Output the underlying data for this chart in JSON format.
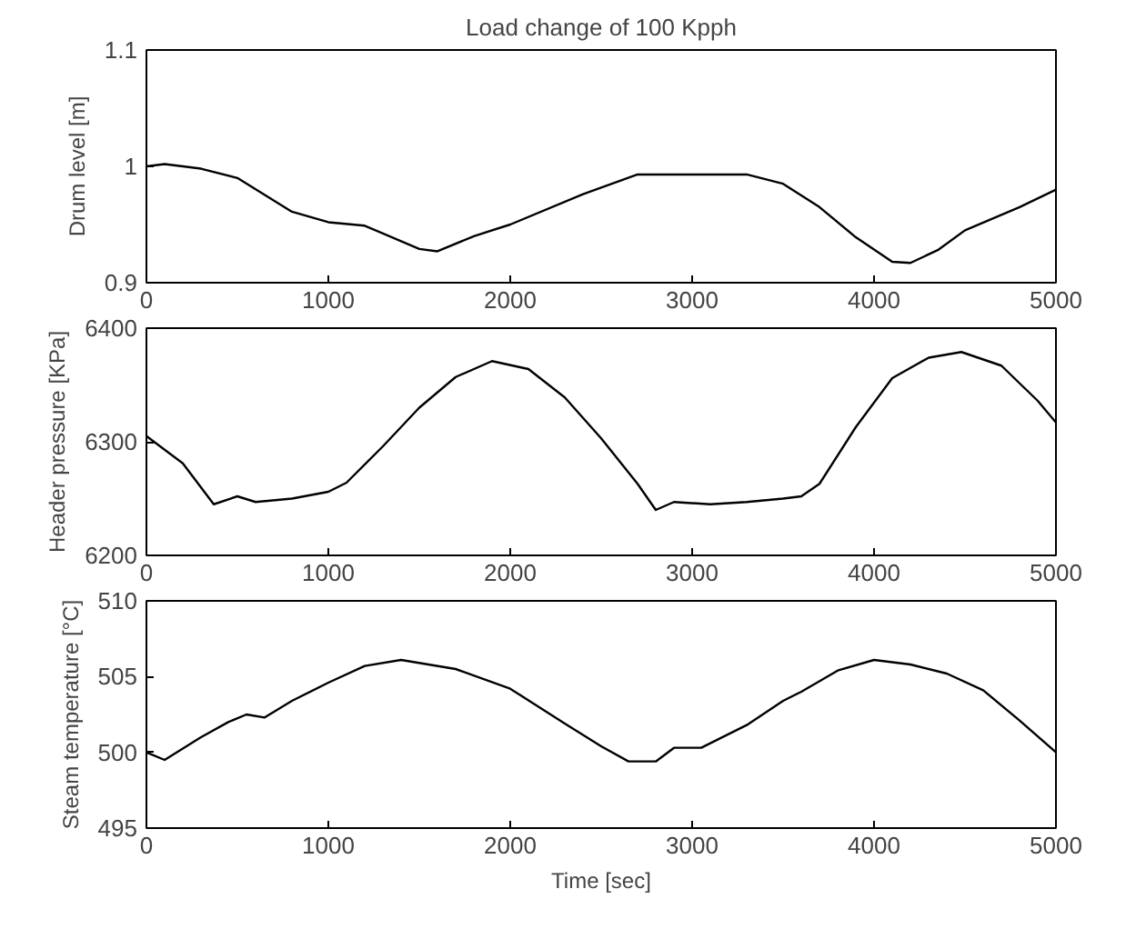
{
  "chart_data": [
    {
      "type": "line",
      "title": "Load change of 100 Kpph",
      "ylabel": "Drum level [m]",
      "xlim": [
        0,
        5000
      ],
      "ylim": [
        0.9,
        1.1
      ],
      "xticks": [
        0,
        1000,
        2000,
        3000,
        4000,
        5000
      ],
      "yticks": [
        0.9,
        1,
        1.1
      ],
      "grid": false,
      "series": [
        {
          "color": "#000000",
          "x": [
            0,
            100,
            300,
            500,
            800,
            1000,
            1200,
            1500,
            1600,
            1800,
            2000,
            2400,
            2700,
            3300,
            3500,
            3700,
            3900,
            4100,
            4200,
            4350,
            4500,
            4800,
            5000
          ],
          "values": [
            1.0,
            1.002,
            0.998,
            0.99,
            0.961,
            0.952,
            0.949,
            0.929,
            0.927,
            0.94,
            0.95,
            0.976,
            0.993,
            0.993,
            0.985,
            0.965,
            0.939,
            0.918,
            0.917,
            0.928,
            0.945,
            0.965,
            0.98
          ]
        }
      ]
    },
    {
      "type": "line",
      "ylabel": "Header pressure [KPa]",
      "xlim": [
        0,
        5000
      ],
      "ylim": [
        6200,
        6400
      ],
      "xticks": [
        0,
        1000,
        2000,
        3000,
        4000,
        5000
      ],
      "yticks": [
        6200,
        6300,
        6400
      ],
      "grid": false,
      "series": [
        {
          "color": "#000000",
          "x": [
            0,
            200,
            370,
            500,
            600,
            800,
            1000,
            1100,
            1300,
            1500,
            1700,
            1900,
            2100,
            2300,
            2500,
            2700,
            2800,
            2900,
            3100,
            3300,
            3500,
            3600,
            3700,
            3900,
            4100,
            4300,
            4480,
            4700,
            4900,
            5000
          ],
          "values": [
            6305,
            6281,
            6245,
            6252,
            6247,
            6250,
            6256,
            6264,
            6296,
            6330,
            6357,
            6371,
            6364,
            6339,
            6303,
            6263,
            6240,
            6247,
            6245,
            6247,
            6250,
            6252,
            6263,
            6313,
            6356,
            6374,
            6379,
            6367,
            6336,
            6317
          ]
        }
      ]
    },
    {
      "type": "line",
      "ylabel": "Steam temperature [°C]",
      "xlabel": "Time [sec]",
      "xlim": [
        0,
        5000
      ],
      "ylim": [
        495,
        510
      ],
      "xticks": [
        0,
        1000,
        2000,
        3000,
        4000,
        5000
      ],
      "yticks": [
        495,
        500,
        505,
        510
      ],
      "grid": false,
      "series": [
        {
          "color": "#000000",
          "x": [
            0,
            100,
            300,
            450,
            550,
            650,
            800,
            1000,
            1200,
            1400,
            1700,
            2000,
            2300,
            2500,
            2650,
            2800,
            2900,
            3050,
            3300,
            3500,
            3600,
            3800,
            4000,
            4200,
            4400,
            4600,
            4800,
            5000
          ],
          "values": [
            500,
            499.5,
            501,
            502,
            502.5,
            502.3,
            503.4,
            504.6,
            505.7,
            506.1,
            505.5,
            504.2,
            501.9,
            500.4,
            499.4,
            499.4,
            500.3,
            500.3,
            501.8,
            503.4,
            504,
            505.4,
            506.1,
            505.8,
            505.2,
            504.1,
            502.1,
            500
          ]
        }
      ]
    }
  ]
}
